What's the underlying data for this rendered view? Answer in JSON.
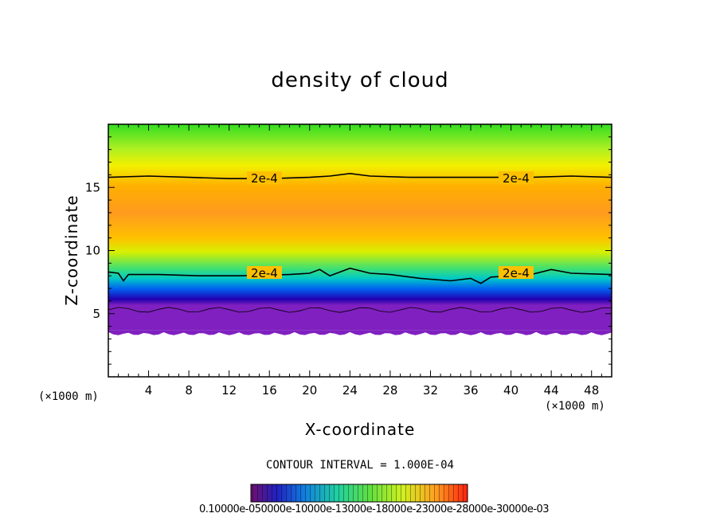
{
  "chart_data": {
    "type": "heatmap",
    "title": "density of cloud",
    "xlabel": "X-coordinate",
    "ylabel": "Z-coordinate",
    "x_unit": "(×1000 m)",
    "xlim": [
      0,
      50
    ],
    "ylim": [
      0,
      20
    ],
    "x_ticks": [
      4,
      8,
      12,
      16,
      20,
      24,
      28,
      32,
      36,
      40,
      44,
      48
    ],
    "y_ticks": [
      5,
      10,
      15
    ],
    "contour_interval": "CONTOUR INTERVAL = 1.000E-04",
    "contour_labels": [
      {
        "text": "2e-4",
        "x": 15.5,
        "z": 15.7
      },
      {
        "text": "2e-4",
        "x": 40.5,
        "z": 15.7
      },
      {
        "text": "2e-4",
        "x": 15.5,
        "z": 8.2
      },
      {
        "text": "2e-4",
        "x": 40.5,
        "z": 8.2
      }
    ],
    "upper_contour": [
      [
        0,
        15.8
      ],
      [
        4,
        15.9
      ],
      [
        8,
        15.8
      ],
      [
        12,
        15.7
      ],
      [
        16,
        15.7
      ],
      [
        20,
        15.8
      ],
      [
        22,
        15.9
      ],
      [
        24,
        16.1
      ],
      [
        26,
        15.9
      ],
      [
        30,
        15.8
      ],
      [
        34,
        15.8
      ],
      [
        38,
        15.8
      ],
      [
        42,
        15.8
      ],
      [
        46,
        15.9
      ],
      [
        50,
        15.8
      ]
    ],
    "lower_contour": [
      [
        0,
        8.3
      ],
      [
        1,
        8.2
      ],
      [
        1.5,
        7.6
      ],
      [
        2,
        8.1
      ],
      [
        5,
        8.1
      ],
      [
        9,
        8.0
      ],
      [
        13,
        8.0
      ],
      [
        18,
        8.1
      ],
      [
        20,
        8.2
      ],
      [
        21,
        8.5
      ],
      [
        22,
        8.0
      ],
      [
        24,
        8.6
      ],
      [
        26,
        8.2
      ],
      [
        28,
        8.1
      ],
      [
        31,
        7.8
      ],
      [
        34,
        7.6
      ],
      [
        36,
        7.8
      ],
      [
        37,
        7.4
      ],
      [
        38,
        7.9
      ],
      [
        42,
        8.1
      ],
      [
        44,
        8.5
      ],
      [
        46,
        8.2
      ],
      [
        50,
        8.1
      ]
    ],
    "cloud_base_z": 3.7,
    "colorbar_label": "0.10000e-050000e-10000e-13000e-18000e-23000e-28000e-30000e-03"
  }
}
